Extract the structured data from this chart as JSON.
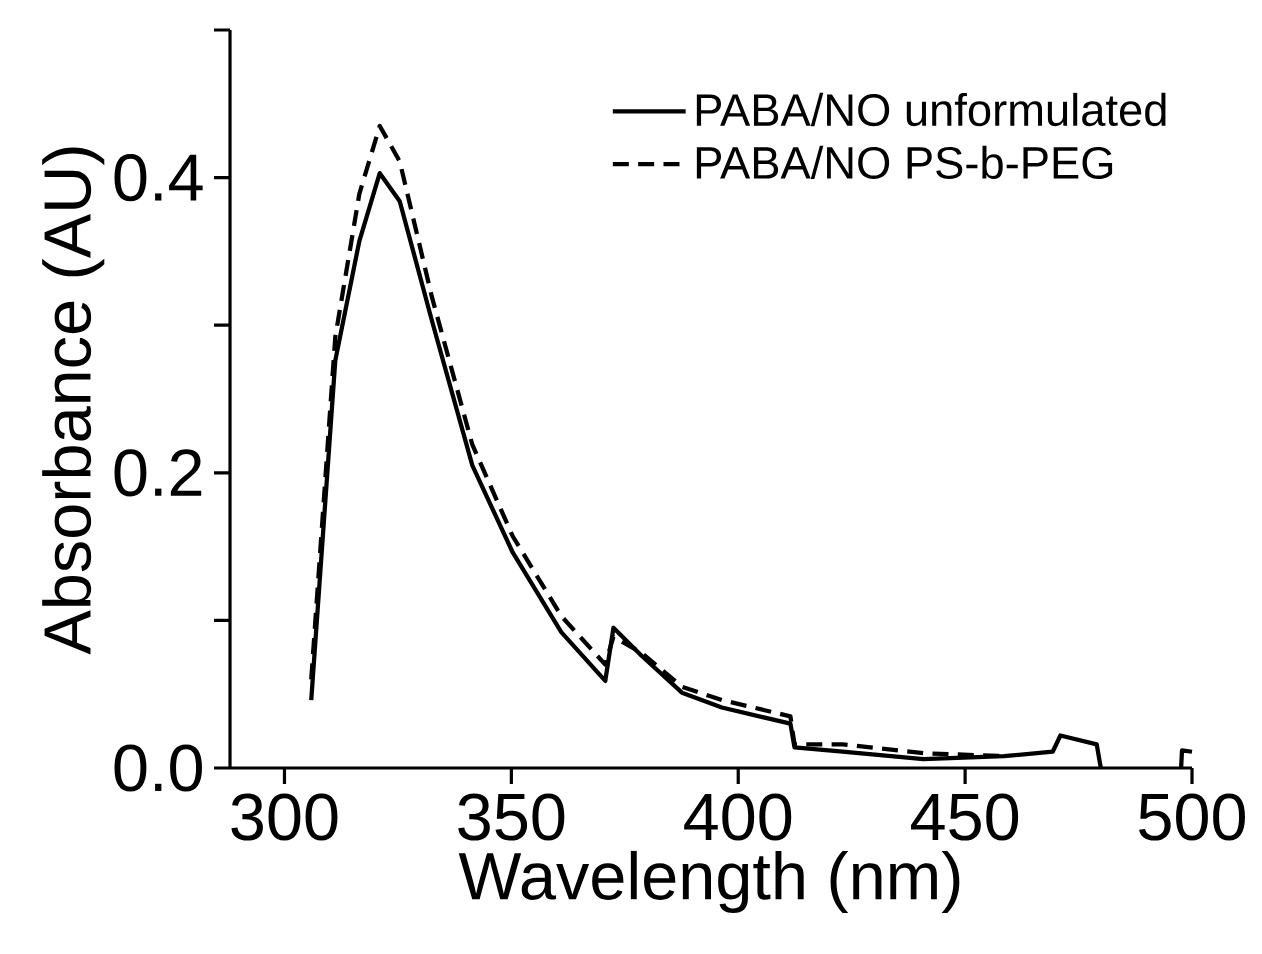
{
  "chart_data": {
    "type": "line",
    "xlabel": "Wavelength (nm)",
    "ylabel": "Absorbance (AU)",
    "xlim": [
      288,
      500
    ],
    "ylim": [
      0,
      0.5
    ],
    "xticks": [
      300,
      350,
      400,
      450,
      500
    ],
    "yticks": [
      {
        "value": 0,
        "label": "0.0"
      },
      {
        "value": 0.1,
        "label": null
      },
      {
        "value": 0.2,
        "label": "0.2"
      },
      {
        "value": 0.3,
        "label": null
      },
      {
        "value": 0.4,
        "label": "0.4"
      },
      {
        "value": 0.5,
        "label": null
      }
    ],
    "legend": "top right",
    "series": [
      {
        "name": "PABA/NO unformulated",
        "color": "#000000",
        "line_style": "solid",
        "x": [
          305.9,
          311.2,
          316.5,
          321,
          325.4,
          332.5,
          341.4,
          350.3,
          361,
          370.7,
          372.5,
          378.7,
          387.6,
          396.4,
          411.5,
          412.4,
          423,
          440.8,
          458.6,
          469.3,
          471,
          479,
          479.9,
          489,
          497.6,
          497.8,
          500
        ],
        "values": [
          0.046,
          0.276,
          0.357,
          0.403,
          0.384,
          0.303,
          0.205,
          0.146,
          0.092,
          0.059,
          0.095,
          0.076,
          0.051,
          0.041,
          0.03,
          0.014,
          0.011,
          0.006,
          0.008,
          0.011,
          0.022,
          0.016,
          0.0,
          null,
          0.0,
          0.012,
          0.011
        ]
      },
      {
        "name": "PABA/NO PS-b-PEG",
        "color": "#000000",
        "line_style": "dashed",
        "x": [
          305.9,
          311.2,
          316.5,
          321,
          325.4,
          332.5,
          341.4,
          350.3,
          361,
          370.7,
          372.5,
          378.7,
          387.6,
          396.4,
          411.5,
          412.4,
          423,
          440.8,
          458.6
        ],
        "values": [
          0.06,
          0.292,
          0.389,
          0.435,
          0.411,
          0.319,
          0.219,
          0.157,
          0.103,
          0.07,
          0.089,
          0.078,
          0.055,
          0.046,
          0.035,
          0.016,
          0.016,
          0.01,
          0.008
        ]
      }
    ]
  }
}
